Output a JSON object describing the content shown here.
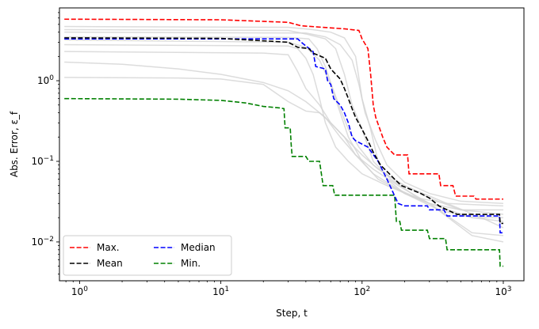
{
  "chart_data": {
    "type": "line",
    "title": "",
    "xlabel": "Step, t",
    "ylabel": "Abs. Error, ε_f",
    "xscale": "log",
    "yscale": "log",
    "xlim": [
      0.72,
      1400
    ],
    "ylim": [
      0.0033,
      8.0
    ],
    "grid": false,
    "legend": {
      "placement": "lower-left",
      "columns": 2
    },
    "x_ticks": [
      {
        "value": 1,
        "base": "10",
        "exp": "0"
      },
      {
        "value": 10,
        "base": "10",
        "exp": "1"
      },
      {
        "value": 100,
        "base": "10",
        "exp": "2"
      },
      {
        "value": 1000,
        "base": "10",
        "exp": "3"
      }
    ],
    "y_ticks": [
      {
        "value": 0.01,
        "base": "10",
        "exp": "−2"
      },
      {
        "value": 0.1,
        "base": "10",
        "exp": "−1"
      },
      {
        "value": 1,
        "base": "10",
        "exp": "0"
      }
    ],
    "series": [
      {
        "name": "Max.",
        "color": "#ff0000",
        "style": "dashed",
        "points": [
          [
            0.78,
            5.8
          ],
          [
            10,
            5.7
          ],
          [
            30,
            5.3
          ],
          [
            37,
            4.8
          ],
          [
            75,
            4.4
          ],
          [
            95,
            4.2
          ],
          [
            100,
            3.3
          ],
          [
            110,
            2.5
          ],
          [
            115,
            1.2
          ],
          [
            120,
            0.5
          ],
          [
            125,
            0.35
          ],
          [
            140,
            0.2
          ],
          [
            150,
            0.15
          ],
          [
            170,
            0.12
          ],
          [
            210,
            0.12
          ],
          [
            215,
            0.07
          ],
          [
            350,
            0.07
          ],
          [
            360,
            0.05
          ],
          [
            440,
            0.05
          ],
          [
            460,
            0.037
          ],
          [
            620,
            0.037
          ],
          [
            640,
            0.034
          ],
          [
            1000,
            0.034
          ]
        ]
      },
      {
        "name": "Mean",
        "color": "#000000",
        "style": "dashed",
        "points": [
          [
            0.78,
            3.4
          ],
          [
            10,
            3.35
          ],
          [
            30,
            3.0
          ],
          [
            35,
            2.6
          ],
          [
            42,
            2.5
          ],
          [
            45,
            2.2
          ],
          [
            55,
            1.9
          ],
          [
            60,
            1.4
          ],
          [
            70,
            1.05
          ],
          [
            75,
            0.8
          ],
          [
            80,
            0.6
          ],
          [
            85,
            0.45
          ],
          [
            90,
            0.35
          ],
          [
            100,
            0.25
          ],
          [
            110,
            0.18
          ],
          [
            120,
            0.13
          ],
          [
            135,
            0.09
          ],
          [
            150,
            0.075
          ],
          [
            170,
            0.06
          ],
          [
            190,
            0.05
          ],
          [
            220,
            0.045
          ],
          [
            260,
            0.04
          ],
          [
            300,
            0.035
          ],
          [
            350,
            0.028
          ],
          [
            400,
            0.025
          ],
          [
            470,
            0.022
          ],
          [
            940,
            0.022
          ],
          [
            950,
            0.017
          ],
          [
            1000,
            0.017
          ]
        ]
      },
      {
        "name": "Median",
        "color": "#0000ff",
        "style": "dashed",
        "points": [
          [
            0.78,
            3.3
          ],
          [
            30,
            3.3
          ],
          [
            35,
            3.3
          ],
          [
            38,
            2.9
          ],
          [
            45,
            2.3
          ],
          [
            47,
            1.5
          ],
          [
            55,
            1.4
          ],
          [
            57,
            1.0
          ],
          [
            60,
            0.9
          ],
          [
            63,
            0.6
          ],
          [
            70,
            0.5
          ],
          [
            75,
            0.4
          ],
          [
            80,
            0.3
          ],
          [
            85,
            0.2
          ],
          [
            90,
            0.18
          ],
          [
            110,
            0.15
          ],
          [
            130,
            0.1
          ],
          [
            150,
            0.06
          ],
          [
            180,
            0.03
          ],
          [
            200,
            0.028
          ],
          [
            290,
            0.028
          ],
          [
            300,
            0.025
          ],
          [
            380,
            0.025
          ],
          [
            400,
            0.021
          ],
          [
            940,
            0.021
          ],
          [
            950,
            0.013
          ],
          [
            1000,
            0.013
          ]
        ]
      },
      {
        "name": "Min.",
        "color": "#008000",
        "style": "dashed",
        "points": [
          [
            0.78,
            0.6
          ],
          [
            5,
            0.59
          ],
          [
            10,
            0.57
          ],
          [
            15,
            0.53
          ],
          [
            20,
            0.48
          ],
          [
            26,
            0.46
          ],
          [
            28,
            0.45
          ],
          [
            28.5,
            0.26
          ],
          [
            31,
            0.26
          ],
          [
            31.5,
            0.16
          ],
          [
            32,
            0.115
          ],
          [
            40,
            0.115
          ],
          [
            42,
            0.1
          ],
          [
            50,
            0.1
          ],
          [
            53,
            0.05
          ],
          [
            62,
            0.05
          ],
          [
            64,
            0.038
          ],
          [
            170,
            0.038
          ],
          [
            175,
            0.018
          ],
          [
            185,
            0.018
          ],
          [
            190,
            0.014
          ],
          [
            290,
            0.014
          ],
          [
            300,
            0.011
          ],
          [
            390,
            0.011
          ],
          [
            400,
            0.008
          ],
          [
            940,
            0.008
          ],
          [
            950,
            0.005
          ],
          [
            1000,
            0.005
          ]
        ]
      }
    ],
    "background_runs": [
      {
        "color": "#d3d3d3",
        "points": [
          [
            0.78,
            4.7
          ],
          [
            30,
            4.6
          ],
          [
            45,
            4.3
          ],
          [
            60,
            4.0
          ],
          [
            75,
            3.4
          ],
          [
            90,
            2.0
          ],
          [
            100,
            0.6
          ],
          [
            115,
            0.25
          ],
          [
            130,
            0.1
          ],
          [
            150,
            0.06
          ],
          [
            200,
            0.04
          ],
          [
            300,
            0.03
          ],
          [
            500,
            0.025
          ],
          [
            1000,
            0.022
          ]
        ]
      },
      {
        "color": "#d3d3d3",
        "points": [
          [
            0.78,
            4.3
          ],
          [
            30,
            4.2
          ],
          [
            40,
            3.8
          ],
          [
            55,
            3.3
          ],
          [
            65,
            2.5
          ],
          [
            75,
            1.2
          ],
          [
            85,
            0.5
          ],
          [
            100,
            0.25
          ],
          [
            120,
            0.1
          ],
          [
            160,
            0.06
          ],
          [
            250,
            0.035
          ],
          [
            400,
            0.03
          ],
          [
            1000,
            0.028
          ]
        ]
      },
      {
        "color": "#d3d3d3",
        "points": [
          [
            0.78,
            3.2
          ],
          [
            30,
            3.0
          ],
          [
            40,
            2.6
          ],
          [
            50,
            1.8
          ],
          [
            60,
            0.9
          ],
          [
            70,
            0.4
          ],
          [
            80,
            0.2
          ],
          [
            100,
            0.1
          ],
          [
            130,
            0.06
          ],
          [
            200,
            0.04
          ],
          [
            350,
            0.025
          ],
          [
            600,
            0.02
          ],
          [
            1000,
            0.02
          ]
        ]
      },
      {
        "color": "#d3d3d3",
        "points": [
          [
            0.78,
            2.8
          ],
          [
            30,
            2.7
          ],
          [
            35,
            2.5
          ],
          [
            40,
            1.9
          ],
          [
            45,
            1.2
          ],
          [
            50,
            0.6
          ],
          [
            55,
            0.3
          ],
          [
            65,
            0.15
          ],
          [
            80,
            0.1
          ],
          [
            100,
            0.07
          ],
          [
            150,
            0.05
          ],
          [
            300,
            0.03
          ],
          [
            600,
            0.012
          ],
          [
            1000,
            0.01
          ]
        ]
      },
      {
        "color": "#d3d3d3",
        "points": [
          [
            0.78,
            2.3
          ],
          [
            20,
            2.2
          ],
          [
            30,
            2.1
          ],
          [
            35,
            1.3
          ],
          [
            40,
            0.8
          ],
          [
            50,
            0.5
          ],
          [
            60,
            0.3
          ],
          [
            75,
            0.2
          ],
          [
            100,
            0.12
          ],
          [
            130,
            0.08
          ],
          [
            200,
            0.05
          ],
          [
            400,
            0.03
          ],
          [
            700,
            0.02
          ],
          [
            1000,
            0.015
          ]
        ]
      },
      {
        "color": "#d3d3d3",
        "points": [
          [
            0.78,
            1.7
          ],
          [
            2,
            1.6
          ],
          [
            5,
            1.4
          ],
          [
            10,
            1.2
          ],
          [
            20,
            0.95
          ],
          [
            30,
            0.75
          ],
          [
            40,
            0.55
          ],
          [
            55,
            0.35
          ],
          [
            70,
            0.2
          ],
          [
            90,
            0.12
          ],
          [
            120,
            0.08
          ],
          [
            180,
            0.05
          ],
          [
            300,
            0.03
          ],
          [
            600,
            0.013
          ],
          [
            1000,
            0.012
          ]
        ]
      },
      {
        "color": "#d3d3d3",
        "points": [
          [
            0.78,
            1.1
          ],
          [
            5,
            1.08
          ],
          [
            10,
            1.05
          ],
          [
            20,
            0.9
          ],
          [
            30,
            0.55
          ],
          [
            40,
            0.42
          ],
          [
            50,
            0.4
          ],
          [
            60,
            0.3
          ],
          [
            75,
            0.2
          ],
          [
            90,
            0.12
          ],
          [
            120,
            0.07
          ],
          [
            180,
            0.045
          ],
          [
            300,
            0.03
          ],
          [
            600,
            0.02
          ],
          [
            1000,
            0.018
          ]
        ]
      },
      {
        "color": "#d3d3d3",
        "points": [
          [
            0.78,
            3.5
          ],
          [
            30,
            3.45
          ],
          [
            42,
            3.3
          ],
          [
            48,
            2.5
          ],
          [
            55,
            1.5
          ],
          [
            62,
            0.8
          ],
          [
            70,
            0.45
          ],
          [
            80,
            0.25
          ],
          [
            95,
            0.15
          ],
          [
            120,
            0.09
          ],
          [
            180,
            0.055
          ],
          [
            300,
            0.035
          ],
          [
            500,
            0.025
          ],
          [
            1000,
            0.025
          ]
        ]
      },
      {
        "color": "#d3d3d3",
        "points": [
          [
            0.78,
            4.0
          ],
          [
            40,
            3.9
          ],
          [
            55,
            3.5
          ],
          [
            70,
            2.8
          ],
          [
            85,
            1.8
          ],
          [
            95,
            0.9
          ],
          [
            105,
            0.4
          ],
          [
            125,
            0.18
          ],
          [
            150,
            0.09
          ],
          [
            200,
            0.055
          ],
          [
            300,
            0.04
          ],
          [
            500,
            0.032
          ],
          [
            1000,
            0.03
          ]
        ]
      }
    ]
  }
}
